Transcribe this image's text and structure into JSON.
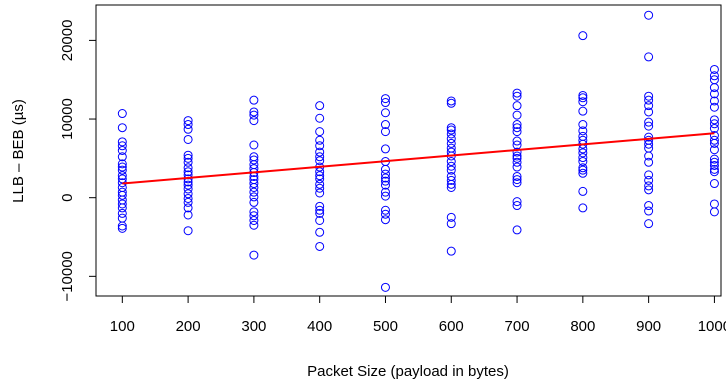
{
  "chart_data": {
    "type": "scatter",
    "title": "",
    "xlabel": "Packet Size (payload in bytes)",
    "ylabel": "LLB – BEB (µs)",
    "x_ticks": [
      100,
      200,
      300,
      400,
      500,
      600,
      700,
      800,
      900,
      1000
    ],
    "y_ticks": [
      -10000,
      0,
      10000,
      20000
    ],
    "xlim": [
      60,
      1010
    ],
    "ylim": [
      -12500,
      24500
    ],
    "grid": false,
    "point_color": "#0000ff",
    "line_color": "#ff0000",
    "series": [
      {
        "x": 100,
        "y": [
          10700,
          8900,
          7100,
          6600,
          6000,
          5200,
          4300,
          3900,
          3500,
          2800,
          2400,
          1900,
          1300,
          700,
          300,
          -300,
          -800,
          -1300,
          -2000,
          -2600,
          -3600,
          -3900
        ]
      },
      {
        "x": 200,
        "y": [
          9800,
          9300,
          8700,
          7400,
          5400,
          5000,
          4500,
          3800,
          3300,
          2900,
          2400,
          2000,
          1600,
          1100,
          500,
          -100,
          -600,
          -1300,
          -2200,
          -4200
        ]
      },
      {
        "x": 300,
        "y": [
          12400,
          10900,
          10500,
          9800,
          6700,
          5200,
          4800,
          4200,
          3700,
          3200,
          2700,
          2300,
          1800,
          1300,
          700,
          100,
          -600,
          -1800,
          -2300,
          -2900,
          -3500,
          -7300
        ]
      },
      {
        "x": 400,
        "y": [
          11700,
          10100,
          8400,
          7300,
          6600,
          5800,
          5200,
          4700,
          3900,
          3300,
          2800,
          2400,
          1700,
          1200,
          600,
          -1100,
          -1600,
          -2000,
          -2900,
          -4400,
          -6200
        ]
      },
      {
        "x": 500,
        "y": [
          12600,
          12100,
          10800,
          9300,
          8400,
          6200,
          4600,
          3600,
          3000,
          2500,
          2100,
          1600,
          700,
          200,
          -1600,
          -2100,
          -2800,
          -11400
        ]
      },
      {
        "x": 600,
        "y": [
          12300,
          12000,
          8900,
          8600,
          8100,
          7500,
          6900,
          6300,
          5800,
          5300,
          4600,
          4000,
          3500,
          2700,
          2200,
          1700,
          1300,
          -2500,
          -3300,
          -6800
        ]
      },
      {
        "x": 700,
        "y": [
          13300,
          12900,
          11700,
          10500,
          9300,
          8900,
          8400,
          7200,
          6700,
          5800,
          5300,
          5000,
          4500,
          3900,
          2700,
          2300,
          1900,
          -500,
          -1000,
          -4100
        ]
      },
      {
        "x": 800,
        "y": [
          20600,
          13000,
          12700,
          12200,
          11000,
          9300,
          8500,
          7800,
          7300,
          6800,
          6200,
          5700,
          5100,
          4600,
          3800,
          3500,
          3100,
          800,
          -1300
        ]
      },
      {
        "x": 900,
        "y": [
          23200,
          17900,
          12900,
          12400,
          11700,
          10900,
          9600,
          9100,
          7700,
          7300,
          6800,
          6300,
          5300,
          4500,
          2900,
          2200,
          1500,
          1000,
          -1000,
          -1700,
          -3300
        ]
      },
      {
        "x": 1000,
        "y": [
          16300,
          15500,
          15000,
          14000,
          13200,
          12300,
          11500,
          9900,
          9400,
          8800,
          7900,
          7300,
          6900,
          6100,
          4900,
          4500,
          4100,
          3600,
          3300,
          1800,
          -800,
          -1800
        ]
      }
    ],
    "fit_line": {
      "x": [
        100,
        1000
      ],
      "y": [
        1800,
        8200
      ]
    }
  }
}
